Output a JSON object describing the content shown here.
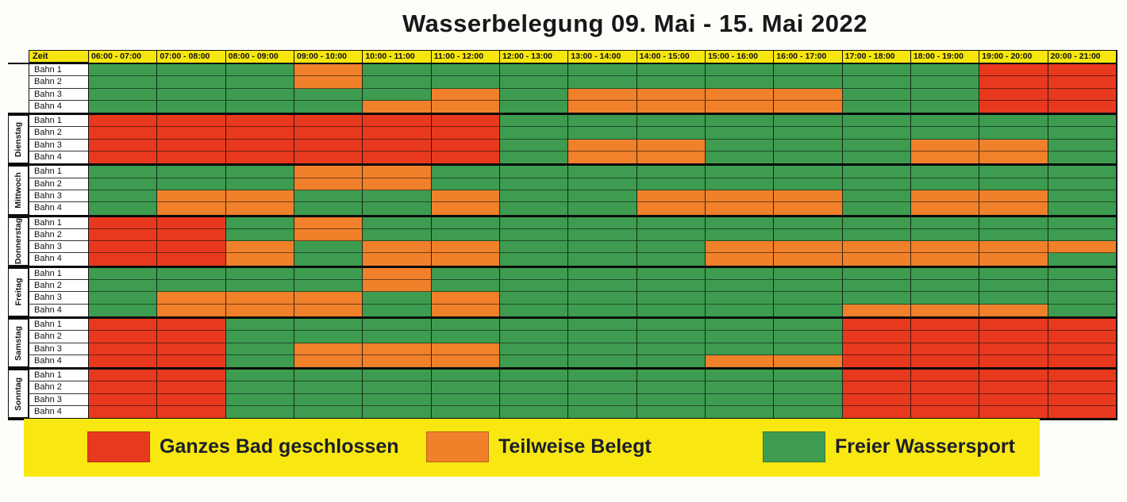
{
  "title": "Wasserbelegung 09. Mai - 15. Mai 2022",
  "colors": {
    "R": "#e8391e",
    "O": "#f0802a",
    "G": "#3d9c4f",
    "header_yellow": "#f6e60e",
    "legend_yellow": "#f9e711"
  },
  "schedule": {
    "zeit_label": "Zeit",
    "time_slots": [
      "06:00 - 07:00",
      "07:00 - 08:00",
      "08:00 - 09:00",
      "09:00 - 10:00",
      "10:00 - 11:00",
      "11:00 - 12:00",
      "12:00 - 13:00",
      "13:00 - 14:00",
      "14:00 - 15:00",
      "15:00 - 16:00",
      "16:00 - 17:00",
      "17:00 - 18:00",
      "18:00 - 19:00",
      "19:00 - 20:00",
      "20:00 - 21:00"
    ],
    "lane_labels": [
      "Bahn 1",
      "Bahn 2",
      "Bahn 3",
      "Bahn 4"
    ],
    "days": [
      {
        "name": "",
        "lanes": [
          [
            "G",
            "G",
            "G",
            "O",
            "G",
            "G",
            "G",
            "G",
            "G",
            "G",
            "G",
            "G",
            "G",
            "R",
            "R"
          ],
          [
            "G",
            "G",
            "G",
            "O",
            "G",
            "G",
            "G",
            "G",
            "G",
            "G",
            "G",
            "G",
            "G",
            "R",
            "R"
          ],
          [
            "G",
            "G",
            "G",
            "G",
            "G",
            "O",
            "G",
            "O",
            "O",
            "O",
            "O",
            "G",
            "G",
            "R",
            "R"
          ],
          [
            "G",
            "G",
            "G",
            "G",
            "O",
            "O",
            "G",
            "O",
            "O",
            "O",
            "O",
            "G",
            "G",
            "R",
            "R"
          ]
        ]
      },
      {
        "name": "Dienstag",
        "lanes": [
          [
            "R",
            "R",
            "R",
            "R",
            "R",
            "R",
            "G",
            "G",
            "G",
            "G",
            "G",
            "G",
            "G",
            "G",
            "G"
          ],
          [
            "R",
            "R",
            "R",
            "R",
            "R",
            "R",
            "G",
            "G",
            "G",
            "G",
            "G",
            "G",
            "G",
            "G",
            "G"
          ],
          [
            "R",
            "R",
            "R",
            "R",
            "R",
            "R",
            "G",
            "O",
            "O",
            "G",
            "G",
            "G",
            "O",
            "O",
            "G"
          ],
          [
            "R",
            "R",
            "R",
            "R",
            "R",
            "R",
            "G",
            "O",
            "O",
            "G",
            "G",
            "G",
            "O",
            "O",
            "G"
          ]
        ]
      },
      {
        "name": "Mittwoch",
        "lanes": [
          [
            "G",
            "G",
            "G",
            "O",
            "O",
            "G",
            "G",
            "G",
            "G",
            "G",
            "G",
            "G",
            "G",
            "G",
            "G"
          ],
          [
            "G",
            "G",
            "G",
            "O",
            "O",
            "G",
            "G",
            "G",
            "G",
            "G",
            "G",
            "G",
            "G",
            "G",
            "G"
          ],
          [
            "G",
            "O",
            "O",
            "G",
            "G",
            "O",
            "G",
            "G",
            "O",
            "O",
            "O",
            "G",
            "O",
            "O",
            "G"
          ],
          [
            "G",
            "O",
            "O",
            "G",
            "G",
            "O",
            "G",
            "G",
            "O",
            "O",
            "O",
            "G",
            "O",
            "O",
            "G"
          ]
        ]
      },
      {
        "name": "Donnerstag",
        "lanes": [
          [
            "R",
            "R",
            "G",
            "O",
            "G",
            "G",
            "G",
            "G",
            "G",
            "G",
            "G",
            "G",
            "G",
            "G",
            "G"
          ],
          [
            "R",
            "R",
            "G",
            "O",
            "G",
            "G",
            "G",
            "G",
            "G",
            "G",
            "G",
            "G",
            "G",
            "G",
            "G"
          ],
          [
            "R",
            "R",
            "O",
            "G",
            "O",
            "O",
            "G",
            "G",
            "G",
            "O",
            "O",
            "O",
            "O",
            "O",
            "O"
          ],
          [
            "R",
            "R",
            "O",
            "G",
            "O",
            "O",
            "G",
            "G",
            "G",
            "O",
            "O",
            "O",
            "O",
            "O",
            "G"
          ]
        ]
      },
      {
        "name": "Freitag",
        "lanes": [
          [
            "G",
            "G",
            "G",
            "G",
            "O",
            "G",
            "G",
            "G",
            "G",
            "G",
            "G",
            "G",
            "G",
            "G",
            "G"
          ],
          [
            "G",
            "G",
            "G",
            "G",
            "O",
            "G",
            "G",
            "G",
            "G",
            "G",
            "G",
            "G",
            "G",
            "G",
            "G"
          ],
          [
            "G",
            "O",
            "O",
            "O",
            "G",
            "O",
            "G",
            "G",
            "G",
            "G",
            "G",
            "G",
            "G",
            "G",
            "G"
          ],
          [
            "G",
            "O",
            "O",
            "O",
            "G",
            "O",
            "G",
            "G",
            "G",
            "G",
            "G",
            "O",
            "O",
            "O",
            "G"
          ]
        ]
      },
      {
        "name": "Samstag",
        "lanes": [
          [
            "R",
            "R",
            "G",
            "G",
            "G",
            "G",
            "G",
            "G",
            "G",
            "G",
            "G",
            "R",
            "R",
            "R",
            "R"
          ],
          [
            "R",
            "R",
            "G",
            "G",
            "G",
            "G",
            "G",
            "G",
            "G",
            "G",
            "G",
            "R",
            "R",
            "R",
            "R"
          ],
          [
            "R",
            "R",
            "G",
            "O",
            "O",
            "O",
            "G",
            "G",
            "G",
            "G",
            "G",
            "R",
            "R",
            "R",
            "R"
          ],
          [
            "R",
            "R",
            "G",
            "O",
            "O",
            "O",
            "G",
            "G",
            "G",
            "O",
            "O",
            "R",
            "R",
            "R",
            "R"
          ]
        ]
      },
      {
        "name": "Sonntag",
        "lanes": [
          [
            "R",
            "R",
            "G",
            "G",
            "G",
            "G",
            "G",
            "G",
            "G",
            "G",
            "G",
            "R",
            "R",
            "R",
            "R"
          ],
          [
            "R",
            "R",
            "G",
            "G",
            "G",
            "G",
            "G",
            "G",
            "G",
            "G",
            "G",
            "R",
            "R",
            "R",
            "R"
          ],
          [
            "R",
            "R",
            "G",
            "G",
            "G",
            "G",
            "G",
            "G",
            "G",
            "G",
            "G",
            "R",
            "R",
            "R",
            "R"
          ],
          [
            "R",
            "R",
            "G",
            "G",
            "G",
            "G",
            "G",
            "G",
            "G",
            "G",
            "G",
            "R",
            "R",
            "R",
            "R"
          ]
        ]
      }
    ]
  },
  "legend": [
    {
      "label": "Ganzes Bad geschlossen",
      "code": "R"
    },
    {
      "label": "Teilweise Belegt",
      "code": "O"
    },
    {
      "label": "Freier Wassersport",
      "code": "G"
    }
  ],
  "status_names": {
    "R": "closed",
    "O": "partial",
    "G": "free"
  }
}
